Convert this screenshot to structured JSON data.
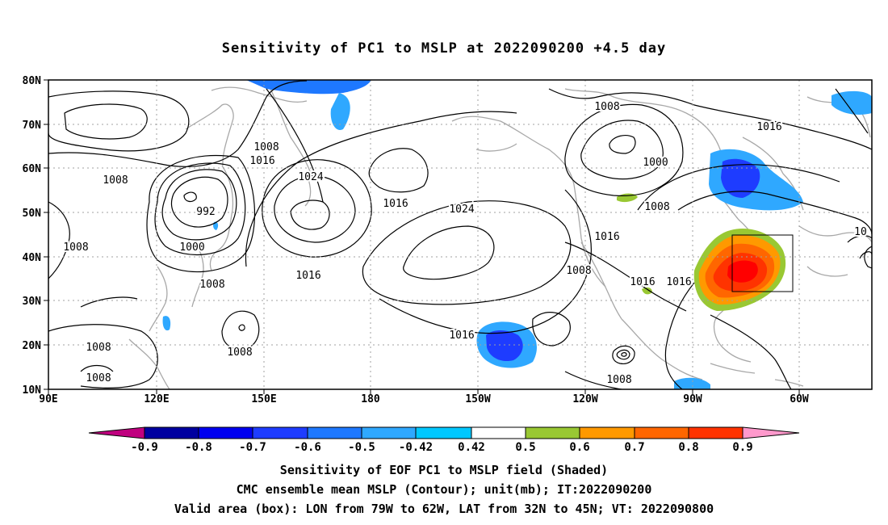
{
  "title": "Sensitivity of PC1 to MSLP at 2022090200 +4.5 day",
  "map": {
    "lat_labels": [
      "80N",
      "70N",
      "60N",
      "50N",
      "40N",
      "30N",
      "20N",
      "10N"
    ],
    "lon_labels": [
      "90E",
      "120E",
      "150E",
      "180",
      "150W",
      "120W",
      "90W",
      "60W"
    ],
    "contour_labels": [
      "1008",
      "1008",
      "1016",
      "1024",
      "1016",
      "1024",
      "1008",
      "1016",
      "1000",
      "1008",
      "1016",
      "1008",
      "992",
      "1000",
      "1008",
      "1016",
      "1008",
      "1016",
      "1016",
      "1008",
      "1008",
      "1016",
      "1008",
      "1008",
      "10"
    ],
    "valid_box": {
      "lon_from": "79W",
      "lon_to": "62W",
      "lat_from": "32N",
      "lat_to": "45N"
    }
  },
  "colorbar": {
    "tick_labels": [
      "-0.9",
      "-0.8",
      "-0.7",
      "-0.6",
      "-0.5",
      "-0.42",
      "0.42",
      "0.5",
      "0.6",
      "0.7",
      "0.8",
      "0.9"
    ],
    "colors": [
      "#c0007f",
      "#0000a0",
      "#0000f0",
      "#1e3cff",
      "#1e78ff",
      "#2fa8ff",
      "#00c8ff",
      "#ffffff",
      "#99c833",
      "#ff9900",
      "#ff6600",
      "#ff3300",
      "#ff0000",
      "#ff99cc"
    ]
  },
  "captions": {
    "line1": "Sensitivity of EOF PC1 to MSLP field (Shaded)",
    "line2": "CMC ensemble mean MSLP (Contour); unit(mb); IT:2022090200",
    "line3": "Valid area (box): LON from 79W to 62W, LAT from 32N to 45N; VT: 2022090800"
  }
}
